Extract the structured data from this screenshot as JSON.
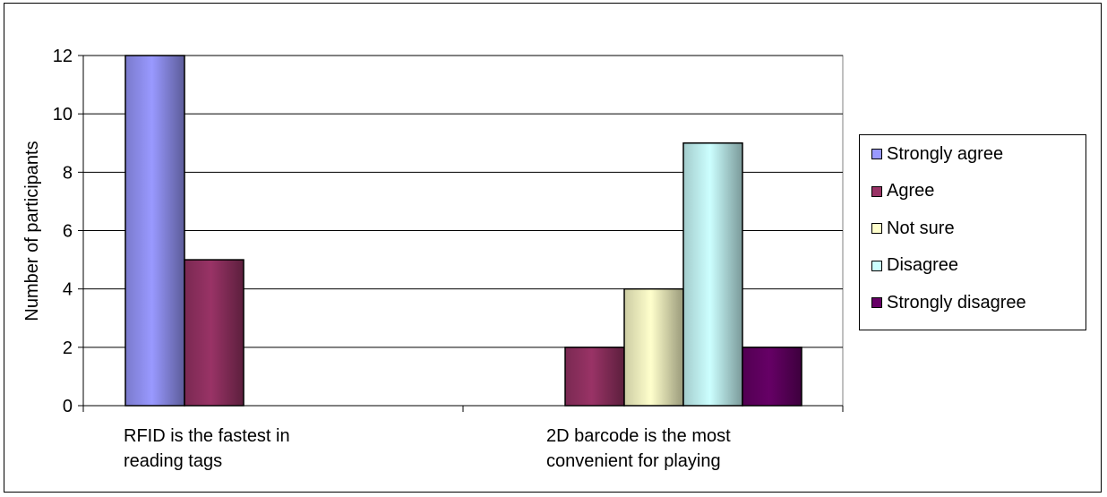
{
  "chart_data": {
    "type": "bar",
    "ylabel": "Number  of participants",
    "ylim": [
      0,
      12
    ],
    "yticks": [
      0,
      2,
      4,
      6,
      8,
      10,
      12
    ],
    "grid": true,
    "legend_position": "right",
    "categories": [
      [
        "RFID is the fastest in",
        "reading tags"
      ],
      [
        "2D barcode is the most",
        "convenient for playing"
      ]
    ],
    "series": [
      {
        "name": "Strongly agree",
        "color": "#9999ff",
        "values": [
          12,
          0
        ]
      },
      {
        "name": "Agree",
        "color": "#993366",
        "values": [
          5,
          2
        ]
      },
      {
        "name": "Not sure",
        "color": "#ffffcc",
        "values": [
          0,
          4
        ]
      },
      {
        "name": "Disagree",
        "color": "#ccffff",
        "values": [
          0,
          9
        ]
      },
      {
        "name": "Strongly disagree",
        "color": "#660066",
        "values": [
          0,
          2
        ]
      }
    ]
  }
}
